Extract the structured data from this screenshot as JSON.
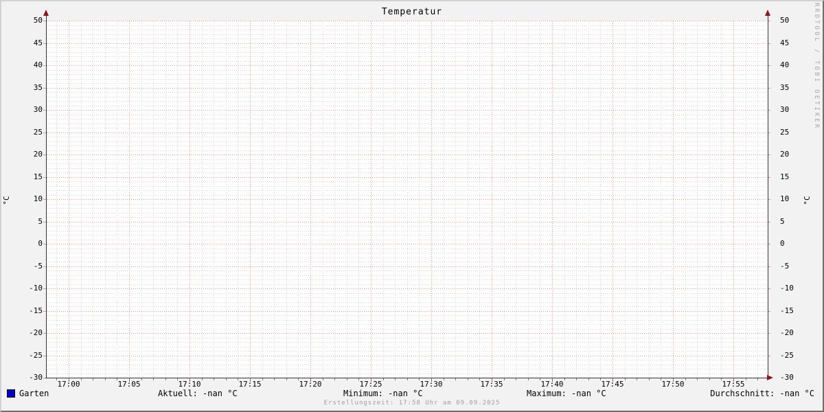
{
  "title": "Temperatur",
  "y_axis_unit": "°C",
  "watermark": "RRDTOOL / TOBI OETIKER",
  "footer": "Erstellungszeit: 17:58 Uhr am 09.09.2025",
  "legend": {
    "series_label": "Garten",
    "series_color": "#0000cc",
    "stats": [
      {
        "text": "Aktuell: -nan °C"
      },
      {
        "text": "Minimum: -nan °C"
      },
      {
        "text": "Maximum: -nan °C"
      },
      {
        "text": "Durchschnitt: -nan °C"
      }
    ]
  },
  "colors": {
    "background": "#f2f2f2",
    "canvas": "#ffffff",
    "major_grid": "#ec9191",
    "minor_grid": "#d6d6d6",
    "axis": "#333333",
    "arrow": "#8b1717",
    "minor_tick": "#7a7a7a",
    "major_tick": "#c04040",
    "series": "#0000cc"
  },
  "chart_data": {
    "type": "line",
    "title": "Temperatur",
    "xlabel": "",
    "ylabel": "°C",
    "ylim": [
      -30,
      50
    ],
    "y_major_step": 5,
    "y_minor_step": 1,
    "x_tick_labels": [
      "17:00",
      "17:05",
      "17:10",
      "17:15",
      "17:20",
      "17:25",
      "17:30",
      "17:35",
      "17:40",
      "17:45",
      "17:50",
      "17:55"
    ],
    "x_major_step_minutes": 5,
    "x_minor_step_minutes": 1,
    "grid": true,
    "legend_position": "bottom",
    "series": [
      {
        "name": "Garten",
        "color": "#0000cc",
        "values": []
      }
    ],
    "stats": {
      "aktuell": "-nan °C",
      "minimum": "-nan °C",
      "maximum": "-nan °C",
      "durchschnitt": "-nan °C"
    }
  }
}
